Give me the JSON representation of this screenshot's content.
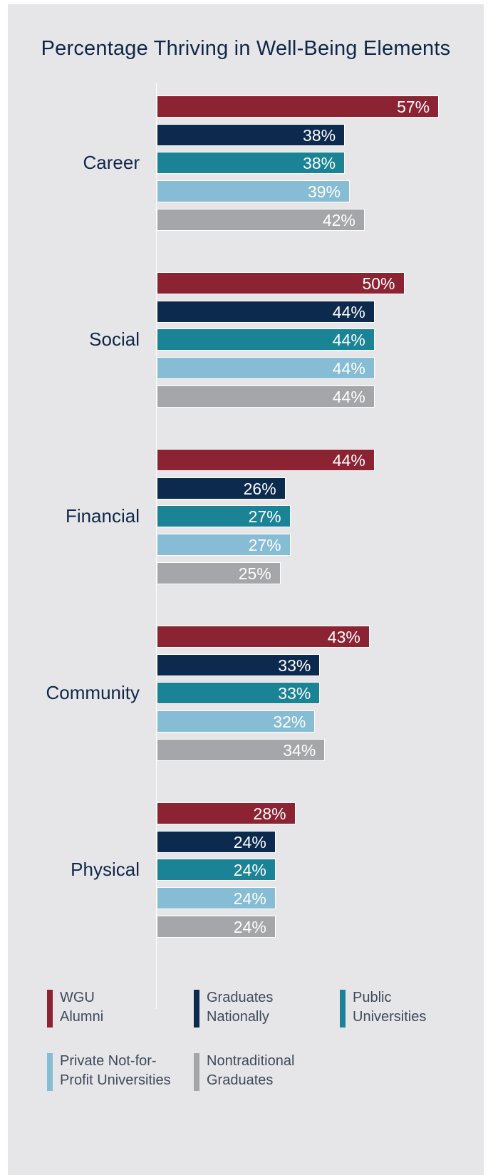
{
  "chart_data": {
    "type": "bar",
    "orientation": "horizontal",
    "title": "Percentage Thriving in Well-Being Elements",
    "categories": [
      "Career",
      "Social",
      "Financial",
      "Community",
      "Physical"
    ],
    "value_suffix": "%",
    "xlim": [
      0,
      60
    ],
    "grid": false,
    "legend_position": "bottom",
    "series": [
      {
        "name": "WGU Alumni",
        "color": "#8b2332",
        "values": [
          57,
          50,
          44,
          43,
          28
        ]
      },
      {
        "name": "Graduates Nationally",
        "color": "#0c2a4e",
        "values": [
          38,
          44,
          26,
          33,
          24
        ]
      },
      {
        "name": "Public Universities",
        "color": "#1b8396",
        "values": [
          38,
          44,
          27,
          33,
          24
        ]
      },
      {
        "name": "Private Not-for-Profit Universities",
        "color": "#86bcd4",
        "values": [
          39,
          44,
          27,
          32,
          24
        ]
      },
      {
        "name": "Nontraditional Graduates",
        "color": "#a4a6a9",
        "values": [
          42,
          44,
          25,
          34,
          24
        ]
      }
    ]
  },
  "legend": [
    {
      "lines": [
        "WGU",
        "Alumni"
      ],
      "color": "#8b2332"
    },
    {
      "lines": [
        "Graduates",
        "Nationally"
      ],
      "color": "#0c2a4e"
    },
    {
      "lines": [
        "Public",
        "Universities"
      ],
      "color": "#1b8396"
    },
    {
      "lines": [
        "Private Not-for-",
        "Profit Universities"
      ],
      "color": "#86bcd4"
    },
    {
      "lines": [
        "Nontraditional",
        "Graduates"
      ],
      "color": "#a4a6a9"
    }
  ]
}
